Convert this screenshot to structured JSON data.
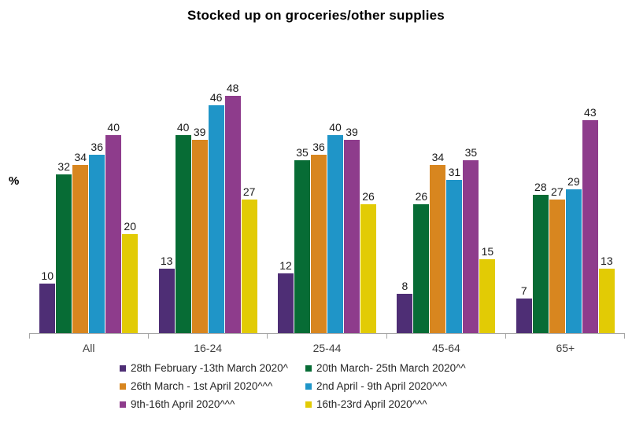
{
  "chart_data": {
    "type": "bar",
    "title": "Stocked up on groceries/other supplies",
    "ylabel": "%",
    "categories": [
      "All",
      "16-24",
      "25-44",
      "45-64",
      "65+"
    ],
    "series": [
      {
        "name": "28th February -13th March 2020^",
        "color": "#4E2E75",
        "values": [
          10,
          13,
          12,
          8,
          7
        ]
      },
      {
        "name": "20th March- 25th March 2020^^",
        "color": "#076C35",
        "values": [
          32,
          40,
          35,
          26,
          28
        ]
      },
      {
        "name": "26th March - 1st April 2020^^^",
        "color": "#D8861F",
        "values": [
          34,
          39,
          36,
          34,
          27
        ]
      },
      {
        "name": "2nd April - 9th April 2020^^^",
        "color": "#1F95C8",
        "values": [
          36,
          46,
          40,
          31,
          29
        ]
      },
      {
        "name": "9th-16th April 2020^^^",
        "color": "#8E3C8C",
        "values": [
          40,
          48,
          39,
          35,
          43
        ]
      },
      {
        "name": "16th-23rd April 2020^^^",
        "color": "#E2CB05",
        "values": [
          20,
          27,
          26,
          15,
          13
        ]
      }
    ],
    "ylim": [
      0,
      50
    ],
    "grid": false,
    "data_labels": true,
    "legend_position": "bottom",
    "axis_color": "#A6A6A6"
  }
}
